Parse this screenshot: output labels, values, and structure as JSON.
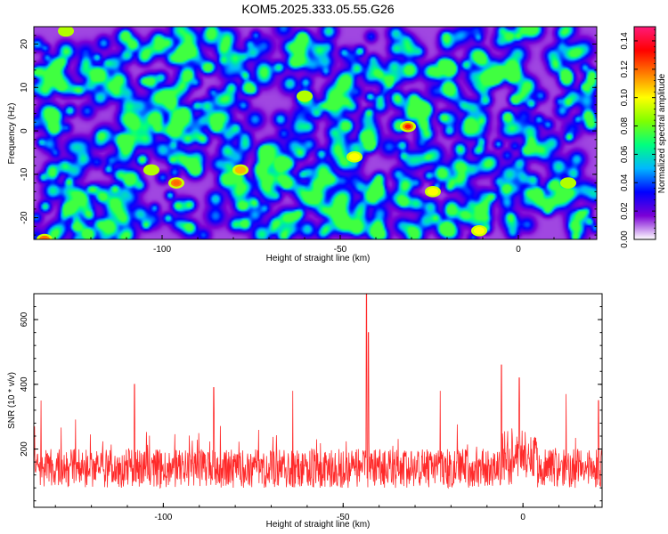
{
  "chart_data": [
    {
      "type": "heatmap",
      "title": "KOM5.2025.333.05.55.G26",
      "xlabel": "Height of straight line (km)",
      "ylabel": "Frequency (Hz)",
      "xlim": [
        -136,
        22
      ],
      "ylim": [
        -25,
        24
      ],
      "x_ticks": [
        -100,
        -50,
        0
      ],
      "y_ticks": [
        -20,
        -10,
        0,
        10,
        20
      ],
      "colorbar": {
        "label": "Normalized spectral amplitude",
        "range": [
          0,
          0.15
        ],
        "ticks": [
          "0.00",
          "0.02",
          "0.04",
          "0.06",
          "0.08",
          "0.10",
          "0.12",
          "0.14"
        ],
        "colors": [
          "#ffffff",
          "#7b00d6",
          "#0000ff",
          "#00b7ff",
          "#00ff7f",
          "#7fff00",
          "#ffff00",
          "#ff7f00",
          "#ff0000",
          "#ff1a7a"
        ]
      },
      "hotspots": [
        {
          "x": -31,
          "y": 1,
          "v": 0.13
        },
        {
          "x": -96,
          "y": -12,
          "v": 0.12
        },
        {
          "x": -133,
          "y": -25,
          "v": 0.12
        },
        {
          "x": -78,
          "y": -9,
          "v": 0.11
        },
        {
          "x": -24,
          "y": -14,
          "v": 0.1
        },
        {
          "x": -46,
          "y": -6,
          "v": 0.1
        },
        {
          "x": -11,
          "y": -23,
          "v": 0.1
        },
        {
          "x": -103,
          "y": -9,
          "v": 0.09
        },
        {
          "x": -60,
          "y": 8,
          "v": 0.09
        },
        {
          "x": 14,
          "y": -12,
          "v": 0.09
        },
        {
          "x": -127,
          "y": 23,
          "v": 0.09
        }
      ]
    },
    {
      "type": "line",
      "xlabel": "Height of straight line (km)",
      "ylabel": "SNR (10 * v/v)",
      "xlim": [
        -136,
        22
      ],
      "ylim": [
        20,
        680
      ],
      "x_ticks": [
        -100,
        -50,
        0
      ],
      "y_ticks": [
        200,
        400,
        600
      ],
      "color": "#ff2a2a",
      "baseline_mean": 140,
      "noise_amplitude": 60,
      "peaks": [
        {
          "x": -43.5,
          "y": 680
        },
        {
          "x": -43,
          "y": 560
        },
        {
          "x": -6,
          "y": 460
        },
        {
          "x": -108,
          "y": 400
        },
        {
          "x": -86,
          "y": 390
        },
        {
          "x": -64,
          "y": 380
        },
        {
          "x": -23,
          "y": 380
        },
        {
          "x": -1,
          "y": 420
        },
        {
          "x": 12,
          "y": 370
        },
        {
          "x": -134,
          "y": 350
        },
        {
          "x": 21,
          "y": 350
        }
      ]
    }
  ]
}
